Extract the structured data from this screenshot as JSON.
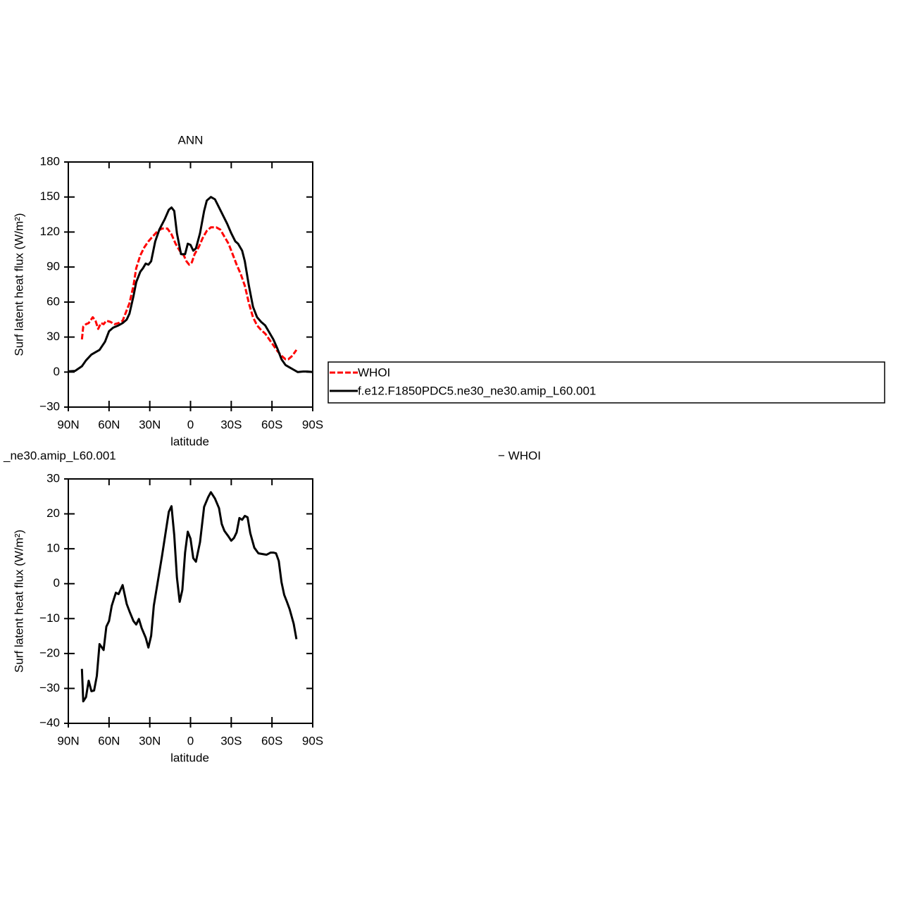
{
  "chart_data": [
    {
      "type": "line",
      "title": "ANN",
      "xlabel": "latitude",
      "ylabel": "Surf latent heat flux (W/m²)",
      "xlim": [
        90,
        -90
      ],
      "ylim": [
        -30,
        180
      ],
      "xticks": [
        {
          "value": 90,
          "label": "90N"
        },
        {
          "value": 60,
          "label": "60N"
        },
        {
          "value": 30,
          "label": "30N"
        },
        0,
        {
          "value": -30,
          "label": "30S"
        },
        {
          "value": -60,
          "label": "60S"
        },
        {
          "value": -90,
          "label": "90S"
        }
      ],
      "yticks": [
        {
          "value": -30,
          "label": "−30"
        },
        0,
        30,
        60,
        90,
        120,
        150,
        180
      ],
      "series": [
        {
          "name": "WHOI",
          "color": "#ff0000",
          "line_style": "dashed",
          "x": [
            80,
            79,
            77,
            75,
            72,
            70,
            68,
            66,
            64,
            62,
            59,
            56,
            53,
            50,
            48,
            45,
            42,
            40,
            37,
            34,
            31,
            28,
            24,
            21,
            17,
            14,
            11,
            8,
            5,
            3,
            1,
            -1,
            -3,
            -6,
            -9,
            -12,
            -15,
            -19,
            -22,
            -25,
            -28,
            -31,
            -34,
            -37,
            -40,
            -43,
            -46,
            -49,
            -52,
            -55,
            -58,
            -61,
            -64,
            -67,
            -70,
            -72,
            -75,
            -78
          ],
          "values": [
            28,
            39,
            41,
            42,
            47,
            44,
            37,
            42,
            41,
            44,
            43,
            41,
            42,
            44,
            50,
            59,
            74,
            89,
            100,
            107,
            112,
            116,
            121,
            123,
            123,
            118,
            110,
            104,
            100,
            95,
            92,
            94,
            101,
            107,
            115,
            121,
            124,
            124,
            122,
            116,
            110,
            101,
            92,
            84,
            74,
            59,
            47,
            40,
            36,
            33,
            28,
            23,
            18,
            14,
            11,
            11,
            14,
            19
          ]
        },
        {
          "name": "f.e12.F1850PDC5.ne30_ne30.amip_L60.001",
          "color": "#000000",
          "line_style": "solid",
          "x": [
            90,
            85,
            80,
            77,
            73,
            70,
            67,
            63,
            60,
            57,
            53,
            50,
            47,
            45,
            42,
            40,
            37,
            35,
            33,
            31,
            29,
            26,
            23,
            19,
            16,
            14,
            12,
            10,
            7,
            4,
            2,
            0,
            -2,
            -4,
            -7,
            -10,
            -12,
            -15,
            -18,
            -21,
            -24,
            -27,
            -30,
            -33,
            -35,
            -38,
            -40,
            -43,
            -46,
            -49,
            -52,
            -55,
            -58,
            -61,
            -64,
            -67,
            -70,
            -73,
            -76,
            -79,
            -83,
            -86,
            -90
          ],
          "values": [
            0.6,
            1,
            5,
            10,
            15,
            17,
            19,
            26,
            35,
            38,
            40,
            42,
            45,
            50,
            65,
            77,
            86,
            89,
            93,
            92,
            95,
            112,
            122,
            131,
            139,
            141,
            138,
            119,
            101,
            101,
            110,
            109,
            104,
            106,
            119,
            138,
            147,
            150,
            148,
            141,
            134,
            127,
            119,
            112,
            110,
            104,
            95,
            74,
            56,
            47,
            43,
            40,
            34,
            28,
            20,
            11,
            6,
            4,
            2,
            0,
            0.5,
            0.5,
            0
          ]
        }
      ]
    },
    {
      "type": "line",
      "left_title": "_ne30.amip_L60.001",
      "right_title": "− WHOI",
      "xlabel": "latitude",
      "ylabel": "Surf latent heat flux (W/m²)",
      "xlim": [
        90,
        -90
      ],
      "ylim": [
        -40,
        30
      ],
      "xticks": [
        {
          "value": 90,
          "label": "90N"
        },
        {
          "value": 60,
          "label": "60N"
        },
        {
          "value": 30,
          "label": "30N"
        },
        0,
        {
          "value": -30,
          "label": "30S"
        },
        {
          "value": -60,
          "label": "60S"
        },
        {
          "value": -90,
          "label": "90S"
        }
      ],
      "yticks": [
        {
          "value": -40,
          "label": "−40"
        },
        {
          "value": -30,
          "label": "−30"
        },
        {
          "value": -20,
          "label": "−20"
        },
        {
          "value": -10,
          "label": "−10"
        },
        0,
        10,
        20,
        30
      ],
      "series": [
        {
          "color": "#000000",
          "line_style": "solid",
          "x": [
            80,
            79,
            77,
            75,
            73,
            71,
            69,
            67,
            64,
            62,
            60,
            58,
            55,
            53,
            50,
            47,
            45,
            42,
            40,
            38,
            36,
            33,
            31,
            29,
            27,
            24,
            21,
            18,
            16,
            14,
            12,
            10,
            8,
            6,
            4,
            2,
            0,
            -2,
            -4,
            -7,
            -10,
            -13,
            -15,
            -18,
            -21,
            -23,
            -25,
            -28,
            -30,
            -32,
            -34,
            -36,
            -38,
            -40,
            -42,
            -44,
            -47,
            -50,
            -53,
            -56,
            -59,
            -61,
            -63,
            -65,
            -67,
            -69,
            -71,
            -73,
            -76,
            -78
          ],
          "values": [
            -24.4,
            -33.7,
            -32.5,
            -27.8,
            -30.8,
            -30.6,
            -26.4,
            -17.3,
            -19,
            -12.3,
            -10.7,
            -6.3,
            -2.6,
            -3,
            -0.4,
            -5.8,
            -7.9,
            -10.7,
            -11.7,
            -10.1,
            -12.7,
            -15.5,
            -18.3,
            -14.9,
            -6.3,
            0.8,
            7.9,
            15.5,
            20.6,
            22.2,
            13.9,
            1.8,
            -5.2,
            -1.8,
            8.9,
            14.9,
            12.9,
            7.3,
            6.3,
            11.9,
            22,
            24.8,
            26.2,
            24.4,
            21.6,
            17.1,
            15.1,
            13.5,
            12.3,
            13.1,
            14.7,
            18.8,
            18.3,
            19.4,
            19,
            14.5,
            10.3,
            8.7,
            8.5,
            8.3,
            8.9,
            8.9,
            8.7,
            6.5,
            0.4,
            -3.2,
            -5.2,
            -7.3,
            -11.5,
            -15.9
          ]
        }
      ]
    }
  ]
}
